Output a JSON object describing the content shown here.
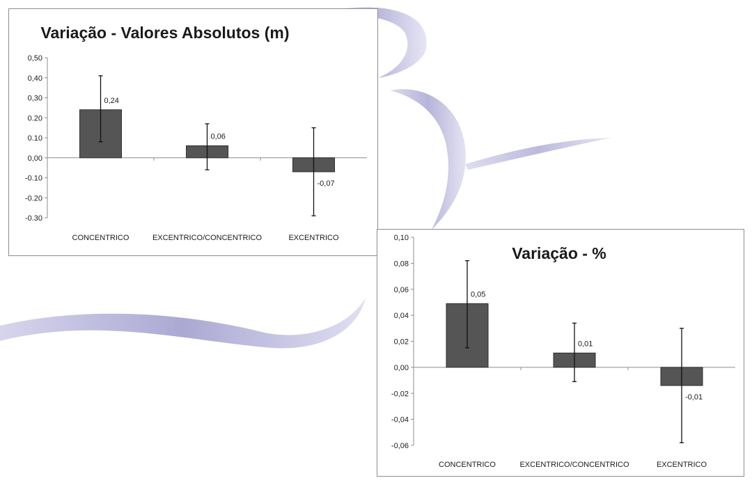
{
  "chart_data": [
    {
      "type": "bar",
      "title": "Variação - Valores Absolutos (m)",
      "categories": [
        "CONCENTRICO",
        "EXCENTRICO/CONCENTRICO",
        "EXCENTRICO"
      ],
      "values": [
        0.24,
        0.06,
        -0.07
      ],
      "data_labels": [
        "0,24",
        "0,06",
        "-0,07"
      ],
      "error_low": [
        0.08,
        -0.06,
        -0.29
      ],
      "error_high": [
        0.41,
        0.17,
        0.15
      ],
      "ylim": [
        -0.3,
        0.5
      ],
      "yticks": [
        0.5,
        0.4,
        0.3,
        0.2,
        0.1,
        0.0,
        -0.1,
        -0.2,
        -0.3
      ],
      "ytick_labels": [
        "0,50",
        "0,40",
        "0,30",
        "0.20",
        "0.10",
        "0,00",
        "-0.10",
        "-0.20",
        "-0.30"
      ],
      "xlabel": "",
      "ylabel": "",
      "grid": false,
      "bar_color": "#555555"
    },
    {
      "type": "bar",
      "title": "Variação - %",
      "categories": [
        "CONCENTRICO",
        "EXCENTRICO/CONCENTRICO",
        "EXCENTRICO"
      ],
      "values": [
        0.049,
        0.011,
        -0.014
      ],
      "data_labels": [
        "0,05",
        "0,01",
        "-0,01"
      ],
      "error_low": [
        0.015,
        -0.011,
        -0.058
      ],
      "error_high": [
        0.082,
        0.034,
        0.03
      ],
      "ylim": [
        -0.06,
        0.1
      ],
      "yticks": [
        0.1,
        0.08,
        0.06,
        0.04,
        0.02,
        0.0,
        -0.02,
        -0.04,
        -0.06
      ],
      "ytick_labels": [
        "0,10",
        "0,08",
        "0,06",
        "0,04",
        "0,02",
        "0,00",
        "-0,02",
        "-0,04",
        "-0,06"
      ],
      "xlabel": "",
      "ylabel": "",
      "grid": false,
      "bar_color": "#555555"
    }
  ]
}
